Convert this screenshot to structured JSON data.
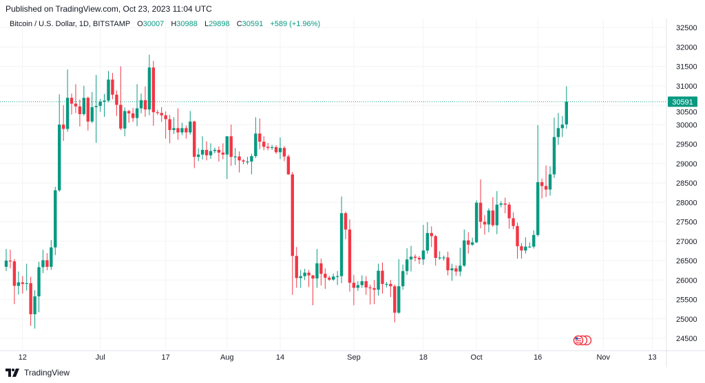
{
  "published": "Published on TradingView.com, Oct 23, 2023 11:04 UTC",
  "legend": {
    "symbol": "Bitcoin / U.S. Dollar, 1D, BITSTAMP",
    "open_label": "O",
    "open": "30007",
    "high_label": "H",
    "high": "30988",
    "low_label": "L",
    "low": "29898",
    "close_label": "C",
    "close": "30591",
    "change": "+589 (+1.96%)"
  },
  "footer": {
    "brand": "TradingView"
  },
  "colors": {
    "up": "#089981",
    "down": "#f23645",
    "grid": "#f2f3f5"
  },
  "chart_data": {
    "type": "candlestick",
    "title": "Bitcoin / U.S. Dollar, 1D, BITSTAMP",
    "start_date": "2023-06-08",
    "interval": "1D",
    "ylim": [
      24300,
      32700
    ],
    "grid": true,
    "last_price": "30591",
    "y_ticks": [
      "32500",
      "32000",
      "31500",
      "31000",
      "30500",
      "30000",
      "29500",
      "29000",
      "28500",
      "28000",
      "27500",
      "27000",
      "26500",
      "26000",
      "25500",
      "25000",
      "24500"
    ],
    "x_ticks": [
      {
        "label": "12",
        "day": 4
      },
      {
        "label": "Jul",
        "day": 23
      },
      {
        "label": "17",
        "day": 39
      },
      {
        "label": "Aug",
        "day": 54
      },
      {
        "label": "14",
        "day": 67
      },
      {
        "label": "Sep",
        "day": 85
      },
      {
        "label": "18",
        "day": 102
      },
      {
        "label": "Oct",
        "day": 115
      },
      {
        "label": "16",
        "day": 130
      },
      {
        "label": "Nov",
        "day": 146
      },
      {
        "label": "13",
        "day": 158
      }
    ],
    "ohlc": [
      [
        26340,
        26800,
        26230,
        26500
      ],
      [
        26500,
        26780,
        26300,
        26480
      ],
      [
        26480,
        26540,
        25380,
        25850
      ],
      [
        25850,
        26220,
        25630,
        25940
      ],
      [
        25940,
        26100,
        25650,
        25900
      ],
      [
        25900,
        26420,
        25730,
        25920
      ],
      [
        25920,
        26080,
        24820,
        25120
      ],
      [
        25120,
        25740,
        24750,
        25580
      ],
      [
        25580,
        26470,
        25170,
        26330
      ],
      [
        26330,
        26780,
        26180,
        26510
      ],
      [
        26510,
        26690,
        26250,
        26340
      ],
      [
        26340,
        27030,
        26260,
        26840
      ],
      [
        26840,
        28400,
        26640,
        28310
      ],
      [
        28310,
        30780,
        28270,
        30000
      ],
      [
        30000,
        30500,
        29580,
        29890
      ],
      [
        29890,
        31420,
        29820,
        30690
      ],
      [
        30690,
        30800,
        30260,
        30540
      ],
      [
        30540,
        31040,
        30300,
        30470
      ],
      [
        30470,
        30650,
        29950,
        30270
      ],
      [
        30270,
        31000,
        30230,
        30690
      ],
      [
        30690,
        30720,
        29850,
        30080
      ],
      [
        30080,
        30840,
        30040,
        30450
      ],
      [
        30450,
        31280,
        29530,
        30480
      ],
      [
        30480,
        30660,
        30330,
        30590
      ],
      [
        30590,
        30790,
        30200,
        30620
      ],
      [
        30620,
        31380,
        30580,
        31160
      ],
      [
        31160,
        31330,
        30650,
        30770
      ],
      [
        30770,
        30880,
        30220,
        30510
      ],
      [
        30510,
        31500,
        29860,
        29900
      ],
      [
        29900,
        30440,
        29700,
        30350
      ],
      [
        30350,
        30380,
        30050,
        30290
      ],
      [
        30290,
        30430,
        30070,
        30170
      ],
      [
        30170,
        31040,
        29960,
        30420
      ],
      [
        30420,
        30800,
        30290,
        30630
      ],
      [
        30630,
        30980,
        30200,
        30390
      ],
      [
        30390,
        31800,
        30240,
        31470
      ],
      [
        31470,
        31640,
        29970,
        30320
      ],
      [
        30320,
        30380,
        30250,
        30300
      ],
      [
        30300,
        30450,
        30070,
        30240
      ],
      [
        30240,
        30340,
        29640,
        30140
      ],
      [
        30140,
        30250,
        29520,
        29860
      ],
      [
        29860,
        30190,
        29760,
        29910
      ],
      [
        29910,
        30420,
        29610,
        29800
      ],
      [
        29800,
        30050,
        29730,
        29910
      ],
      [
        29910,
        29980,
        29640,
        29800
      ],
      [
        29800,
        30350,
        29740,
        30080
      ],
      [
        30080,
        30100,
        28880,
        29170
      ],
      [
        29170,
        29390,
        29060,
        29230
      ],
      [
        29230,
        29700,
        29100,
        29350
      ],
      [
        29350,
        29570,
        29080,
        29210
      ],
      [
        29210,
        29520,
        29120,
        29320
      ],
      [
        29320,
        29410,
        29260,
        29350
      ],
      [
        29350,
        29440,
        29050,
        29280
      ],
      [
        29280,
        29520,
        29110,
        29230
      ],
      [
        29230,
        29700,
        28600,
        29700
      ],
      [
        29700,
        30000,
        28940,
        29170
      ],
      [
        29170,
        29400,
        28960,
        29180
      ],
      [
        29180,
        29310,
        28770,
        29080
      ],
      [
        29080,
        29110,
        28980,
        29050
      ],
      [
        29050,
        29170,
        28970,
        29050
      ],
      [
        29050,
        29250,
        28720,
        29190
      ],
      [
        29190,
        30190,
        29140,
        29770
      ],
      [
        29770,
        30160,
        29370,
        29560
      ],
      [
        29560,
        29700,
        29340,
        29430
      ],
      [
        29430,
        29530,
        29340,
        29400
      ],
      [
        29400,
        29480,
        29350,
        29420
      ],
      [
        29420,
        29470,
        29250,
        29290
      ],
      [
        29290,
        29670,
        29110,
        29400
      ],
      [
        29400,
        29450,
        29060,
        29180
      ],
      [
        29180,
        29230,
        28710,
        28720
      ],
      [
        28720,
        28780,
        25620,
        26620
      ],
      [
        26620,
        26850,
        25800,
        26050
      ],
      [
        26050,
        26260,
        25800,
        26100
      ],
      [
        26100,
        26290,
        26000,
        26190
      ],
      [
        26190,
        26260,
        25820,
        26120
      ],
      [
        26120,
        26130,
        25350,
        26040
      ],
      [
        26040,
        26800,
        25800,
        26430
      ],
      [
        26430,
        26550,
        25860,
        26160
      ],
      [
        26160,
        26300,
        25770,
        26060
      ],
      [
        26060,
        26110,
        25980,
        26010
      ],
      [
        26010,
        26170,
        25980,
        26090
      ],
      [
        26090,
        26230,
        25870,
        26100
      ],
      [
        26100,
        28150,
        25920,
        27720
      ],
      [
        27720,
        27760,
        27050,
        27300
      ],
      [
        27300,
        27560,
        25700,
        25930
      ],
      [
        25930,
        26130,
        25350,
        25800
      ],
      [
        25800,
        25970,
        25720,
        25870
      ],
      [
        25870,
        26120,
        25800,
        25970
      ],
      [
        25970,
        26100,
        25620,
        25810
      ],
      [
        25810,
        25880,
        25370,
        25790
      ],
      [
        25790,
        26000,
        25380,
        25750
      ],
      [
        25750,
        26420,
        25600,
        26240
      ],
      [
        26240,
        26450,
        25650,
        25900
      ],
      [
        25900,
        25950,
        25810,
        25900
      ],
      [
        25900,
        26000,
        25560,
        25840
      ],
      [
        25840,
        25880,
        24910,
        25160
      ],
      [
        25160,
        26540,
        25130,
        25840
      ],
      [
        25840,
        26400,
        25750,
        26230
      ],
      [
        26230,
        26820,
        26130,
        26530
      ],
      [
        26530,
        26880,
        26220,
        26600
      ],
      [
        26600,
        26660,
        26480,
        26570
      ],
      [
        26570,
        26620,
        26410,
        26530
      ],
      [
        26530,
        27420,
        26390,
        26760
      ],
      [
        26760,
        27490,
        26680,
        27210
      ],
      [
        27210,
        27380,
        26850,
        27130
      ],
      [
        27130,
        27160,
        26370,
        26570
      ],
      [
        26570,
        26740,
        26520,
        26580
      ],
      [
        26580,
        26630,
        26500,
        26580
      ],
      [
        26580,
        26730,
        26120,
        26250
      ],
      [
        26250,
        26420,
        25980,
        26300
      ],
      [
        26300,
        26380,
        26110,
        26220
      ],
      [
        26220,
        26830,
        26100,
        26370
      ],
      [
        26370,
        27300,
        26340,
        27020
      ],
      [
        27020,
        27230,
        26680,
        26910
      ],
      [
        26910,
        27090,
        26880,
        26970
      ],
      [
        26970,
        28050,
        26950,
        27990
      ],
      [
        27990,
        28590,
        27330,
        27500
      ],
      [
        27500,
        27670,
        27170,
        27430
      ],
      [
        27430,
        27850,
        27230,
        27790
      ],
      [
        27790,
        28130,
        27370,
        27410
      ],
      [
        27410,
        28290,
        27180,
        27940
      ],
      [
        27940,
        28030,
        27870,
        27970
      ],
      [
        27970,
        28120,
        27720,
        27940
      ],
      [
        27940,
        28000,
        27320,
        27590
      ],
      [
        27590,
        27740,
        27310,
        27390
      ],
      [
        27390,
        27480,
        26550,
        26870
      ],
      [
        26870,
        26950,
        26550,
        26760
      ],
      [
        26760,
        27100,
        26680,
        26860
      ],
      [
        26860,
        26970,
        26830,
        26860
      ],
      [
        26860,
        27280,
        26810,
        27160
      ],
      [
        27160,
        29990,
        27120,
        28520
      ],
      [
        28520,
        28610,
        28100,
        28420
      ],
      [
        28420,
        28950,
        28140,
        28330
      ],
      [
        28330,
        28930,
        28170,
        28720
      ],
      [
        28720,
        30180,
        28630,
        29680
      ],
      [
        29680,
        30300,
        29480,
        29910
      ],
      [
        29910,
        30220,
        29680,
        30000
      ],
      [
        30007,
        30988,
        29898,
        30591
      ]
    ]
  }
}
